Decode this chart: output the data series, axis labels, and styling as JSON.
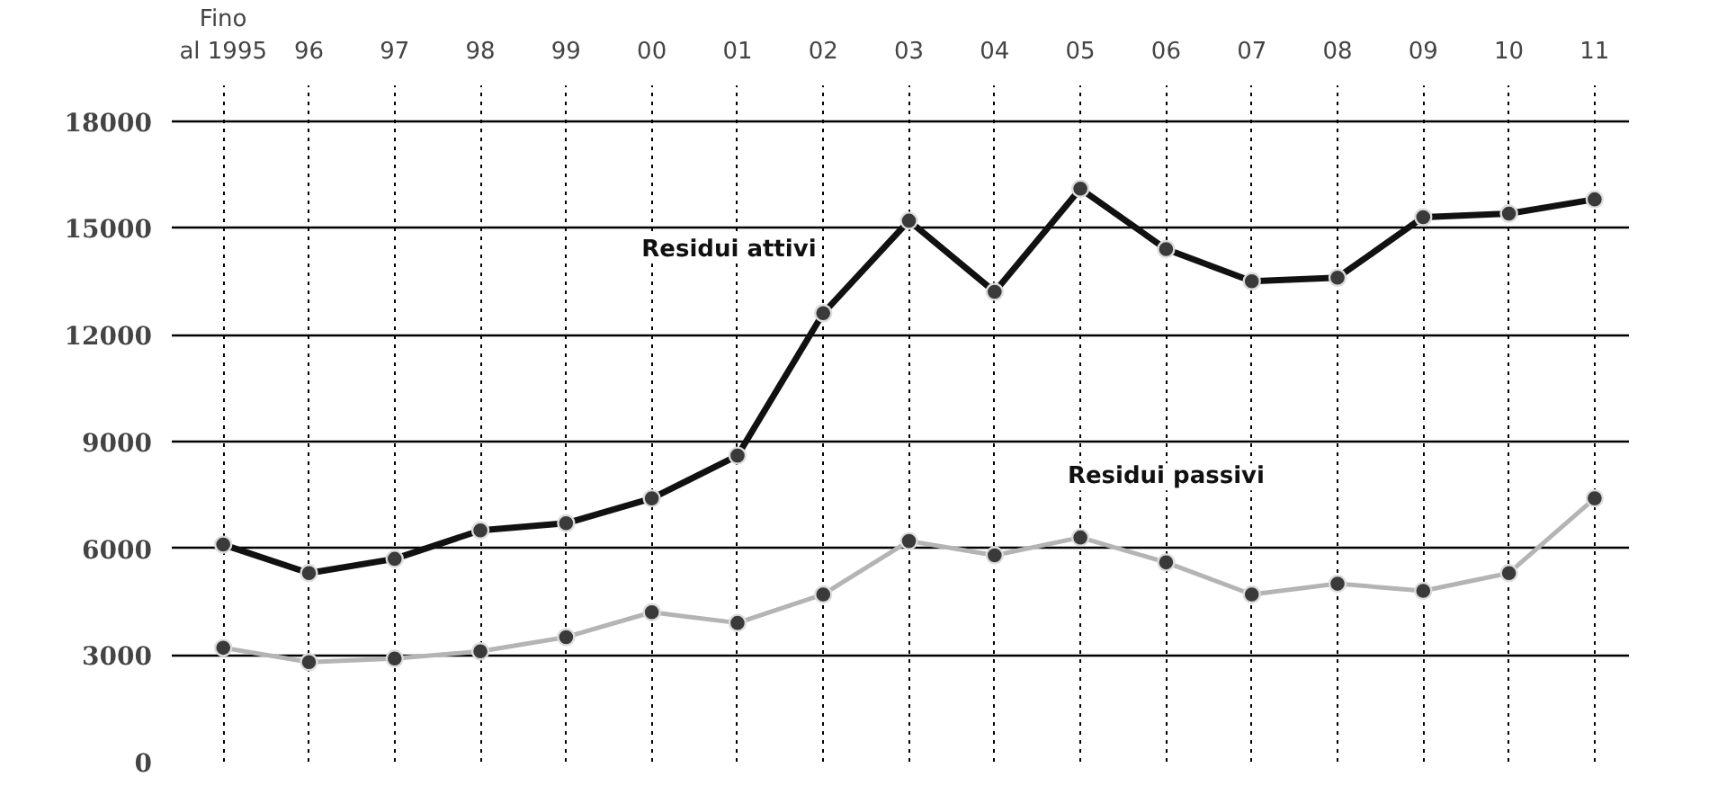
{
  "chart_data": {
    "type": "line",
    "categories": [
      "Fino al 1995",
      "96",
      "97",
      "98",
      "99",
      "00",
      "01",
      "02",
      "03",
      "04",
      "05",
      "06",
      "07",
      "08",
      "09",
      "10",
      "11"
    ],
    "series": [
      {
        "name": "Residui attivi",
        "color": "#111111",
        "values": [
          6100,
          5300,
          5700,
          6500,
          6700,
          7400,
          8600,
          12600,
          15200,
          13200,
          16100,
          14400,
          13500,
          13600,
          15300,
          15400,
          15800
        ]
      },
      {
        "name": "Residui passivi",
        "color": "#b4b4b4",
        "values": [
          3200,
          2800,
          2900,
          3100,
          3500,
          4200,
          3900,
          4700,
          6200,
          5800,
          6300,
          5600,
          4700,
          5000,
          4800,
          5300,
          7400
        ]
      }
    ],
    "ylim": [
      0,
      19000
    ],
    "yticks": [
      0,
      3000,
      6000,
      9000,
      12000,
      15000,
      18000
    ],
    "grid": true,
    "marker": "circle",
    "line_style": "solid"
  }
}
